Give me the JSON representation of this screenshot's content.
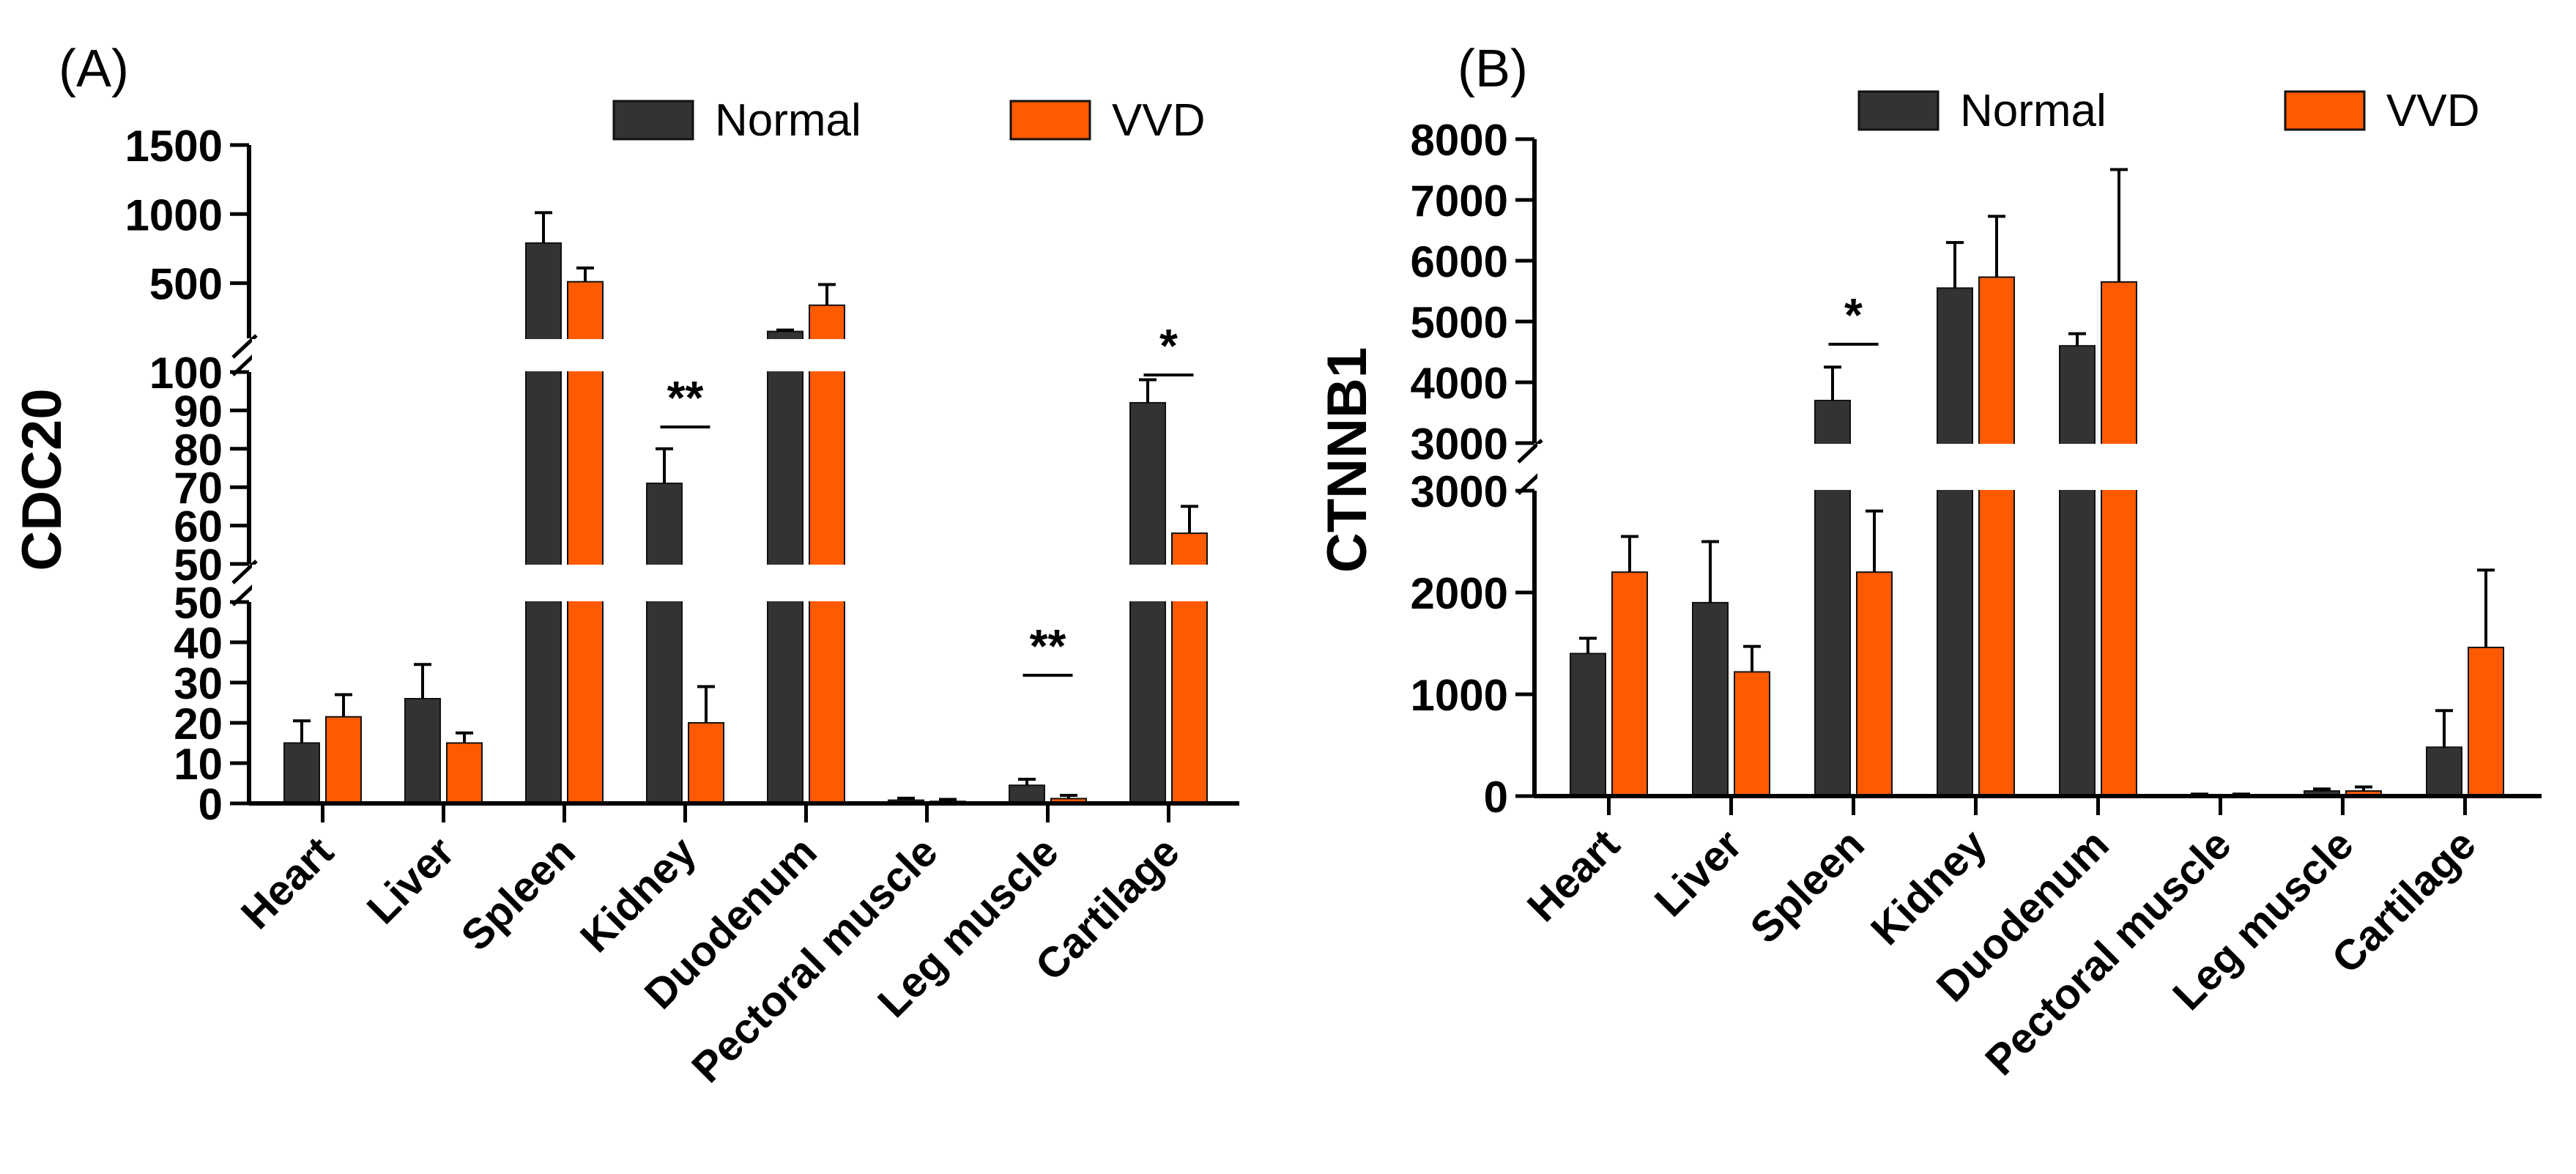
{
  "figure": {
    "colors": {
      "normal": "#333333",
      "vvd": "#ff5a00",
      "axis": "#000000"
    }
  },
  "chart_data": [
    {
      "type": "bar",
      "panel_label": "(A)",
      "ylabel": "CDC20",
      "categories": [
        "Heart",
        "Liver",
        "Spleen",
        "Kidney",
        "Duodenum",
        "Pectoral muscle",
        "Leg muscle",
        "Cartilage"
      ],
      "series": [
        {
          "name": "Normal",
          "values": [
            15,
            26,
            790,
            71,
            150,
            0.8,
            4.5,
            92
          ],
          "errors": [
            5.5,
            8.5,
            220,
            9,
            10,
            0.5,
            1.5,
            6
          ]
        },
        {
          "name": "VVD",
          "values": [
            21.5,
            15,
            510,
            20,
            340,
            0.5,
            1.2,
            58
          ],
          "errors": [
            5.5,
            2.5,
            100,
            9,
            150,
            0.5,
            0.8,
            7
          ]
        }
      ],
      "y_segments": [
        {
          "range": [
            0,
            50
          ],
          "ticks": [
            0,
            10,
            20,
            30,
            40,
            50
          ],
          "tick_labels": [
            "0",
            "10",
            "20",
            "30",
            "40",
            "50"
          ]
        },
        {
          "range": [
            50,
            100
          ],
          "ticks": [
            50,
            60,
            70,
            80,
            90,
            100
          ],
          "tick_labels": [
            "50",
            "60",
            "70",
            "80",
            "90",
            "100"
          ]
        },
        {
          "range": [
            100,
            1500
          ],
          "ticks": [
            500,
            1000,
            1500
          ],
          "tick_labels": [
            "500",
            "1000",
            "1500"
          ]
        }
      ],
      "significance": [
        {
          "category": "Kidney",
          "label": "**"
        },
        {
          "category": "Leg muscle",
          "label": "**"
        },
        {
          "category": "Cartilage",
          "label": "*"
        }
      ],
      "legend": {
        "position": "top-right",
        "entries": [
          "Normal",
          "VVD"
        ]
      }
    },
    {
      "type": "bar",
      "panel_label": "(B)",
      "ylabel": "CTNNB1",
      "categories": [
        "Heart",
        "Liver",
        "Spleen",
        "Kidney",
        "Duodenum",
        "Pectoral muscle",
        "Leg muscle",
        "Cartilage"
      ],
      "series": [
        {
          "name": "Normal",
          "values": [
            1400,
            1900,
            3700,
            5550,
            4600,
            10,
            50,
            480
          ],
          "errors": [
            150,
            600,
            550,
            750,
            200,
            10,
            20,
            360
          ]
        },
        {
          "name": "VVD",
          "values": [
            2200,
            1220,
            2200,
            5730,
            5650,
            10,
            50,
            1460
          ],
          "errors": [
            350,
            250,
            600,
            1000,
            1850,
            10,
            40,
            760
          ]
        }
      ],
      "y_segments": [
        {
          "range": [
            0,
            3000
          ],
          "ticks": [
            0,
            1000,
            2000,
            3000
          ],
          "tick_labels": [
            "0",
            "1000",
            "2000",
            "3000"
          ]
        },
        {
          "range": [
            3000,
            8000
          ],
          "ticks": [
            3000,
            4000,
            5000,
            6000,
            7000,
            8000
          ],
          "tick_labels": [
            "3000",
            "4000",
            "5000",
            "6000",
            "7000",
            "8000"
          ]
        }
      ],
      "significance": [
        {
          "category": "Spleen",
          "label": "*"
        }
      ],
      "legend": {
        "position": "top-right",
        "entries": [
          "Normal",
          "VVD"
        ]
      }
    }
  ]
}
